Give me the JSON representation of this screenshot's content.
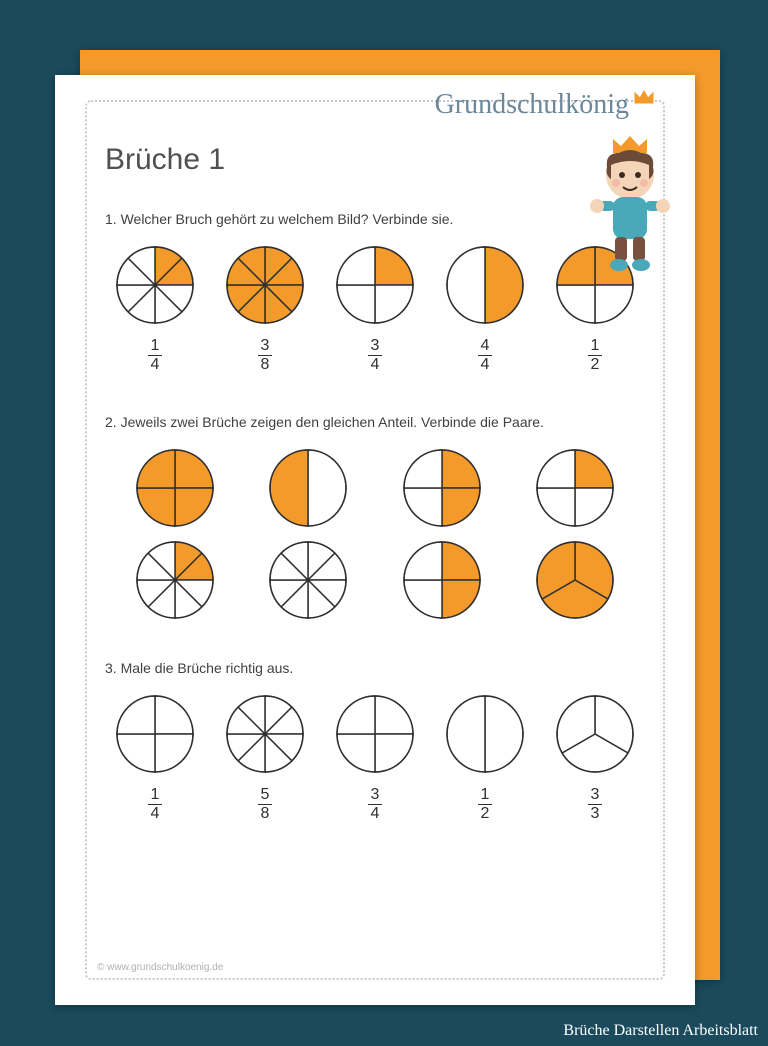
{
  "logo_text": "Grundschulkönig",
  "title": "Brüche 1",
  "footer": "© www.grundschulkoenig.de",
  "caption": "Brüche Darstellen Arbeitsblatt",
  "colors": {
    "page_bg": "#1a4a5c",
    "accent": "#f39a2a",
    "slice_fill": "#f39a2a",
    "slice_stroke": "#303030",
    "text": "#404040"
  },
  "pie_radius": 38,
  "task1": {
    "prompt": "1. Welcher Bruch gehört zu welchem Bild? Verbinde sie.",
    "pies": [
      {
        "slices": 8,
        "filled": [
          0,
          1
        ]
      },
      {
        "slices": 8,
        "filled": [
          0,
          1,
          2,
          3,
          4,
          5,
          6,
          7
        ]
      },
      {
        "slices": 4,
        "filled": [
          0
        ]
      },
      {
        "slices": 2,
        "filled": [
          0
        ]
      },
      {
        "slices": 4,
        "filled": [
          0,
          3
        ]
      }
    ],
    "fractions": [
      {
        "n": "1",
        "d": "4"
      },
      {
        "n": "3",
        "d": "8"
      },
      {
        "n": "3",
        "d": "4"
      },
      {
        "n": "4",
        "d": "4"
      },
      {
        "n": "1",
        "d": "2"
      }
    ]
  },
  "task2": {
    "prompt": "2. Jeweils zwei Brüche zeigen den gleichen Anteil. Verbinde die Paare.",
    "row1": [
      {
        "slices": 4,
        "filled": [
          0,
          1,
          2,
          3
        ]
      },
      {
        "slices": 2,
        "filled": [
          1
        ]
      },
      {
        "slices": 4,
        "filled": [
          0,
          1
        ]
      },
      {
        "slices": 4,
        "filled": [
          0
        ]
      }
    ],
    "row2": [
      {
        "slices": 8,
        "filled": [
          0,
          1
        ]
      },
      {
        "slices": 8,
        "filled": []
      },
      {
        "slices": 4,
        "filled": [
          0,
          1
        ]
      },
      {
        "slices": 3,
        "filled": [
          0,
          1,
          2
        ]
      }
    ]
  },
  "task3": {
    "prompt": "3. Male die Brüche richtig aus.",
    "pies": [
      {
        "slices": 4,
        "filled": []
      },
      {
        "slices": 8,
        "filled": []
      },
      {
        "slices": 4,
        "filled": []
      },
      {
        "slices": 2,
        "filled": []
      },
      {
        "slices": 3,
        "filled": []
      }
    ],
    "fractions": [
      {
        "n": "1",
        "d": "4"
      },
      {
        "n": "5",
        "d": "8"
      },
      {
        "n": "3",
        "d": "4"
      },
      {
        "n": "1",
        "d": "2"
      },
      {
        "n": "3",
        "d": "3"
      }
    ]
  }
}
